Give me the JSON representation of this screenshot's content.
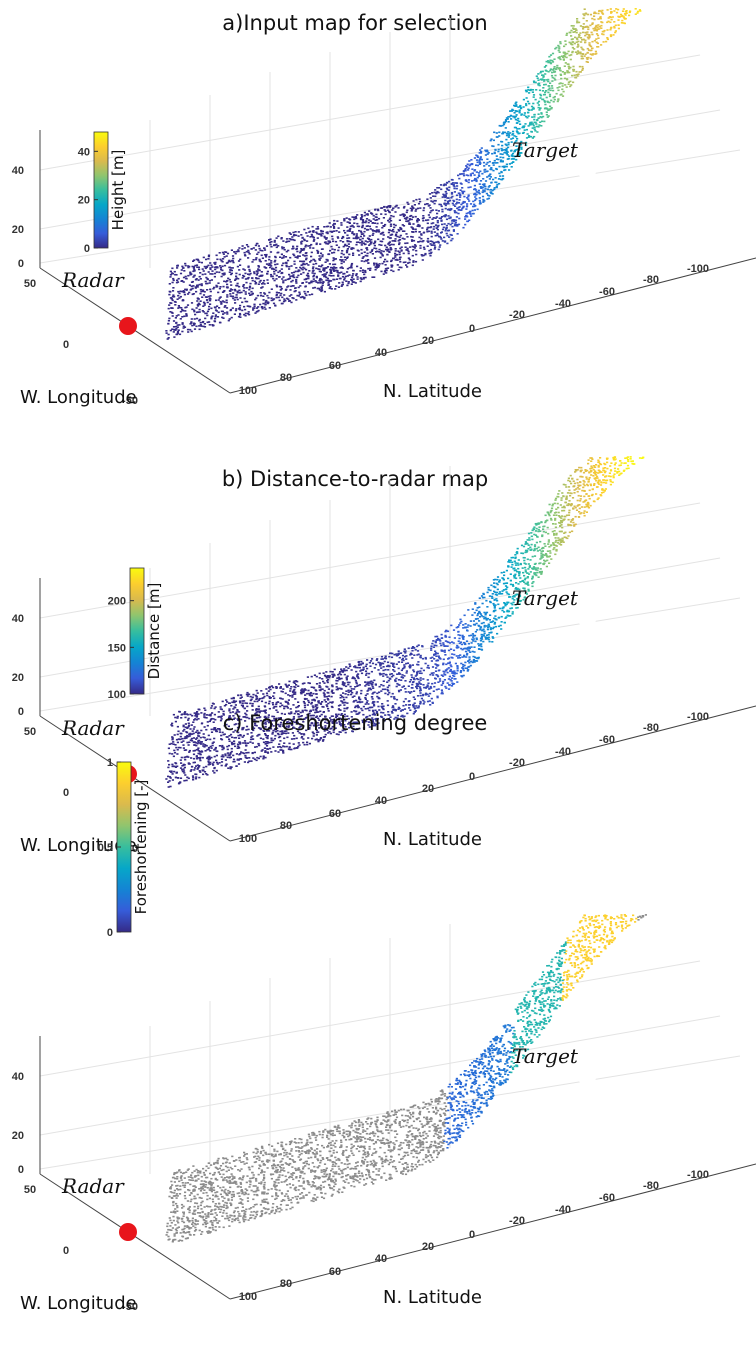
{
  "chart_data": [
    {
      "type": "scatter",
      "title": "a)Input map for selection",
      "xlabel": "N. Latitude",
      "ylabel": "W. Longitude",
      "zticks": [
        "0",
        "20",
        "40"
      ],
      "latticks": [
        "100",
        "80",
        "60",
        "40",
        "20",
        "0",
        "-20",
        "-40",
        "-60",
        "-80",
        "-100"
      ],
      "lonticks": [
        "50",
        "0",
        "-50"
      ],
      "colorbar": {
        "label": "Height [m]",
        "ticks": [
          "0",
          "20",
          "40"
        ],
        "range": [
          0,
          48
        ],
        "colormap": "parula"
      },
      "color_variable": "height",
      "annotations": [
        {
          "text": "Radar",
          "marker_color": "#e8151b"
        },
        {
          "text": "Target",
          "marker_color": "#ffffff"
        }
      ]
    },
    {
      "type": "scatter",
      "title": "b) Distance-to-radar map",
      "xlabel": "N. Latitude",
      "ylabel": "W. Longitude",
      "zticks": [
        "0",
        "20",
        "40"
      ],
      "latticks": [
        "100",
        "80",
        "60",
        "40",
        "20",
        "0",
        "-20",
        "-40",
        "-60",
        "-80",
        "-100"
      ],
      "lonticks": [
        "50",
        "0",
        "-50"
      ],
      "colorbar": {
        "label": "Distance [m]",
        "ticks": [
          "100",
          "150",
          "200"
        ],
        "range": [
          100,
          235
        ],
        "colormap": "parula"
      },
      "color_variable": "distance",
      "annotations": [
        {
          "text": "Radar",
          "marker_color": "#e8151b"
        },
        {
          "text": "Target",
          "marker_color": "#ffffff"
        }
      ]
    },
    {
      "type": "scatter",
      "title": "c) Foreshortening degree",
      "xlabel": "N. Latitude",
      "ylabel": "W. Longitude",
      "zticks": [
        "0",
        "20",
        "40"
      ],
      "latticks": [
        "100",
        "80",
        "60",
        "40",
        "20",
        "0",
        "-20",
        "-40",
        "-60",
        "-80",
        "-100"
      ],
      "lonticks": [
        "50",
        "0",
        "-50"
      ],
      "colorbar": {
        "label": "Foreshortening [-]",
        "ticks": [
          "0",
          "0.5",
          "1"
        ],
        "range": [
          0,
          1
        ],
        "colormap": "parula"
      },
      "color_variable": "foreshortening",
      "annotations": [
        {
          "text": "Radar",
          "marker_color": "#e8151b"
        },
        {
          "text": "Target",
          "marker_color": "#ffffff"
        }
      ]
    }
  ]
}
